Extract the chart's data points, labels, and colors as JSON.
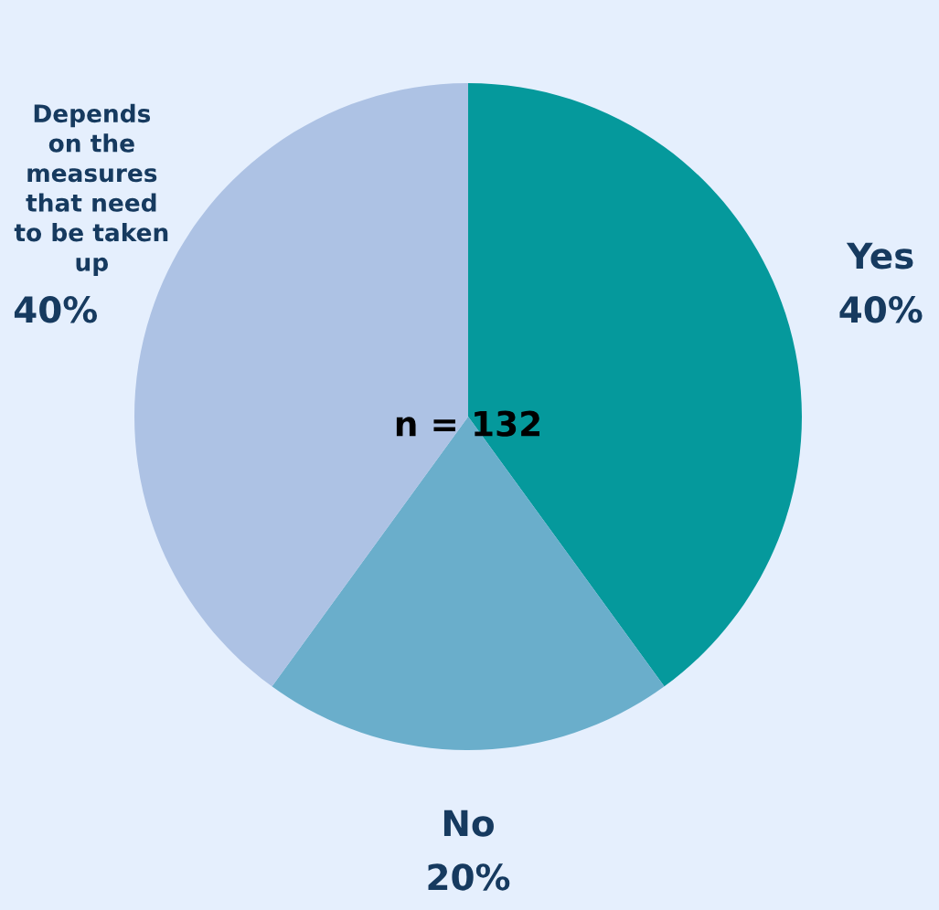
{
  "chart_data": {
    "type": "pie",
    "categories": [
      "Yes",
      "No",
      "Depends\non the\nmeasures\nthat need\nto be taken\nup"
    ],
    "values": [
      40,
      20,
      40
    ],
    "colors": [
      "#05999c",
      "#6aaecb",
      "#adc2e4"
    ],
    "value_labels": [
      "40%",
      "20%",
      "40%"
    ],
    "annotations": [
      "n = 132"
    ]
  }
}
